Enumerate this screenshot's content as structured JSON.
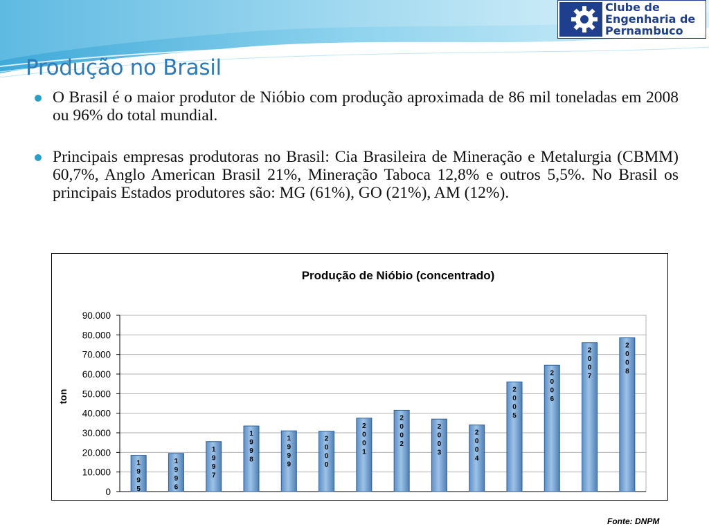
{
  "page": {
    "title": "Produção no Brasil",
    "bullets": [
      "O Brasil é o maior produtor de Nióbio com produção aproximada de 86 mil toneladas em 2008 ou 96% do total mundial.",
      "Principais empresas produtoras no Brasil: Cia Brasileira de Mineração e Metalurgia (CBMM) 60,7%, Anglo American Brasil 21%, Mineração Taboca 12,8% e outros 5,5%. No Brasil os principais Estados produtores são: MG (61%), GO (21%), AM (12%)."
    ],
    "source": "Fonte: DNPM"
  },
  "logo": {
    "lines": [
      "Clube de",
      "Engenharia de",
      "Pernambuco"
    ],
    "color": "#1f3e8e"
  },
  "colors": {
    "title": "#2f7bb9",
    "bullet": "#2aa0c8",
    "bar": "#9dc3e6",
    "bar_edge": "#2e5f95"
  },
  "chart_data": {
    "type": "bar",
    "title": "Produção de Nióbio (concentrado)",
    "ylabel": "ton",
    "xlabel": "",
    "ylim": [
      0,
      90000
    ],
    "yticks": [
      "0",
      "10.000",
      "20.000",
      "30.000",
      "40.000",
      "50.000",
      "60.000",
      "70.000",
      "80.000",
      "90.000"
    ],
    "categories": [
      "1995",
      "1996",
      "1997",
      "1998",
      "1999",
      "2000",
      "2001",
      "2002",
      "2003",
      "2004",
      "2005",
      "2006",
      "2007",
      "2008"
    ],
    "values": [
      18500,
      19500,
      25500,
      33500,
      31000,
      30800,
      37500,
      41500,
      37000,
      34000,
      56000,
      64500,
      76000,
      78500
    ],
    "grid": true,
    "legend": "none"
  }
}
